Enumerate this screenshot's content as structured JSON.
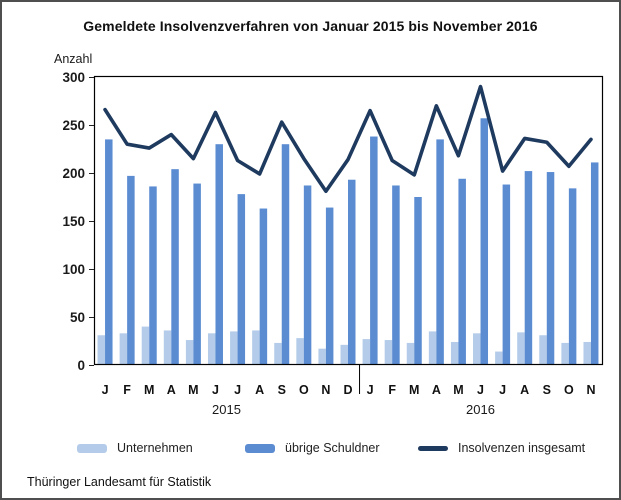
{
  "window": {
    "background": "#ffffff",
    "border_color": "#4f4f4f"
  },
  "chart_data": {
    "type": "bar",
    "subtype": "grouped bars with total line overlay",
    "title": "Gemeldete Insolvenzverfahren von Januar 2015 bis November 2016",
    "ylabel": "Anzahl",
    "xlabel": "",
    "ylim": [
      0,
      300
    ],
    "ytick_step": 50,
    "grid": false,
    "legend_position": "bottom",
    "categories": [
      "J",
      "F",
      "M",
      "A",
      "M",
      "J",
      "J",
      "A",
      "S",
      "O",
      "N",
      "D",
      "J",
      "F",
      "M",
      "A",
      "M",
      "J",
      "J",
      "A",
      "S",
      "O",
      "N"
    ],
    "year_groups": [
      {
        "label": "2015",
        "months": 12
      },
      {
        "label": "2016",
        "months": 11
      }
    ],
    "series": [
      {
        "name": "Unternehmen",
        "type": "bar",
        "color": "#B4CCE9",
        "values": [
          31,
          33,
          40,
          36,
          26,
          33,
          35,
          36,
          23,
          28,
          17,
          21,
          27,
          26,
          23,
          35,
          24,
          33,
          14,
          34,
          31,
          23,
          24
        ]
      },
      {
        "name": "übrige Schuldner",
        "type": "bar",
        "color": "#5B8CD2",
        "values": [
          235,
          197,
          186,
          204,
          189,
          230,
          178,
          163,
          230,
          187,
          164,
          193,
          238,
          187,
          175,
          235,
          194,
          257,
          188,
          202,
          201,
          184,
          211
        ]
      },
      {
        "name": "Insolvenzen insgesamt",
        "type": "line",
        "color": "#1F3A5F",
        "values": [
          266,
          230,
          226,
          240,
          215,
          263,
          213,
          199,
          253,
          215,
          181,
          214,
          265,
          213,
          198,
          270,
          218,
          290,
          202,
          236,
          232,
          207,
          235
        ]
      }
    ]
  },
  "footer": {
    "source": "Thüringer Landesamt für Statistik"
  }
}
